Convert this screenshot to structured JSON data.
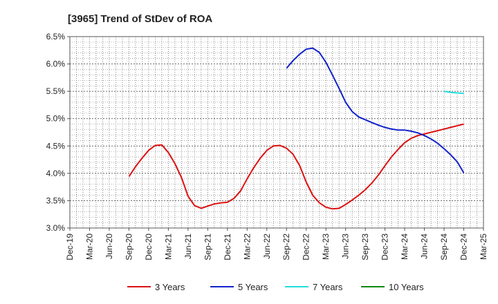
{
  "chart_data": {
    "type": "line",
    "title": "[3965]  Trend of StDev of ROA",
    "xlabel": "",
    "ylabel": "",
    "x_ticks": [
      "Dec-19",
      "Mar-20",
      "Jun-20",
      "Sep-20",
      "Dec-20",
      "Mar-21",
      "Jun-21",
      "Sep-21",
      "Dec-21",
      "Mar-22",
      "Jun-22",
      "Sep-22",
      "Dec-22",
      "Mar-23",
      "Jun-23",
      "Sep-23",
      "Dec-23",
      "Mar-24",
      "Jun-24",
      "Sep-24",
      "Dec-24",
      "Mar-25"
    ],
    "y_ticks": [
      "3.0%",
      "3.5%",
      "4.0%",
      "4.5%",
      "5.0%",
      "5.5%",
      "6.0%",
      "6.5%"
    ],
    "ylim": [
      3.0,
      6.5
    ],
    "grid": true,
    "legend_position": "bottom",
    "series": [
      {
        "name": "3 Years",
        "color": "#dd1111",
        "points": [
          [
            3,
            3.94
          ],
          [
            3.33,
            4.12
          ],
          [
            3.67,
            4.28
          ],
          [
            4,
            4.42
          ],
          [
            4.33,
            4.51
          ],
          [
            4.67,
            4.52
          ],
          [
            5,
            4.38
          ],
          [
            5.33,
            4.18
          ],
          [
            5.67,
            3.92
          ],
          [
            6,
            3.58
          ],
          [
            6.33,
            3.41
          ],
          [
            6.67,
            3.36
          ],
          [
            7,
            3.4
          ],
          [
            7.33,
            3.44
          ],
          [
            7.67,
            3.46
          ],
          [
            8,
            3.47
          ],
          [
            8.33,
            3.54
          ],
          [
            8.67,
            3.68
          ],
          [
            9,
            3.9
          ],
          [
            9.33,
            4.1
          ],
          [
            9.67,
            4.28
          ],
          [
            10,
            4.42
          ],
          [
            10.33,
            4.5
          ],
          [
            10.67,
            4.51
          ],
          [
            11,
            4.46
          ],
          [
            11.33,
            4.35
          ],
          [
            11.67,
            4.14
          ],
          [
            12,
            3.84
          ],
          [
            12.33,
            3.6
          ],
          [
            12.67,
            3.46
          ],
          [
            13,
            3.38
          ],
          [
            13.33,
            3.35
          ],
          [
            13.67,
            3.36
          ],
          [
            14,
            3.43
          ],
          [
            14.33,
            3.51
          ],
          [
            14.67,
            3.6
          ],
          [
            15,
            3.7
          ],
          [
            15.33,
            3.82
          ],
          [
            15.67,
            3.97
          ],
          [
            16,
            4.14
          ],
          [
            16.33,
            4.3
          ],
          [
            16.67,
            4.44
          ],
          [
            17,
            4.56
          ],
          [
            17.33,
            4.64
          ],
          [
            17.67,
            4.69
          ],
          [
            18,
            4.72
          ],
          [
            18.33,
            4.75
          ],
          [
            18.67,
            4.78
          ],
          [
            19,
            4.81
          ],
          [
            19.33,
            4.84
          ],
          [
            19.67,
            4.87
          ],
          [
            20,
            4.9
          ]
        ]
      },
      {
        "name": "5 Years",
        "color": "#1122cc",
        "points": [
          [
            11,
            5.92
          ],
          [
            11.33,
            6.06
          ],
          [
            11.67,
            6.18
          ],
          [
            12,
            6.27
          ],
          [
            12.33,
            6.29
          ],
          [
            12.67,
            6.21
          ],
          [
            13,
            6.03
          ],
          [
            13.33,
            5.8
          ],
          [
            13.67,
            5.55
          ],
          [
            14,
            5.3
          ],
          [
            14.33,
            5.13
          ],
          [
            14.67,
            5.03
          ],
          [
            15,
            4.98
          ],
          [
            15.33,
            4.93
          ],
          [
            15.67,
            4.88
          ],
          [
            16,
            4.84
          ],
          [
            16.33,
            4.81
          ],
          [
            16.67,
            4.79
          ],
          [
            17,
            4.79
          ],
          [
            17.33,
            4.77
          ],
          [
            17.67,
            4.74
          ],
          [
            18,
            4.69
          ],
          [
            18.33,
            4.63
          ],
          [
            18.67,
            4.55
          ],
          [
            19,
            4.45
          ],
          [
            19.33,
            4.34
          ],
          [
            19.67,
            4.21
          ],
          [
            20,
            4.01
          ]
        ]
      },
      {
        "name": "7 Years",
        "color": "#22dddd",
        "points": [
          [
            19,
            5.5
          ],
          [
            19.33,
            5.48
          ],
          [
            19.67,
            5.47
          ],
          [
            20,
            5.46
          ]
        ]
      },
      {
        "name": "10 Years",
        "color": "#118811",
        "points": []
      }
    ]
  }
}
